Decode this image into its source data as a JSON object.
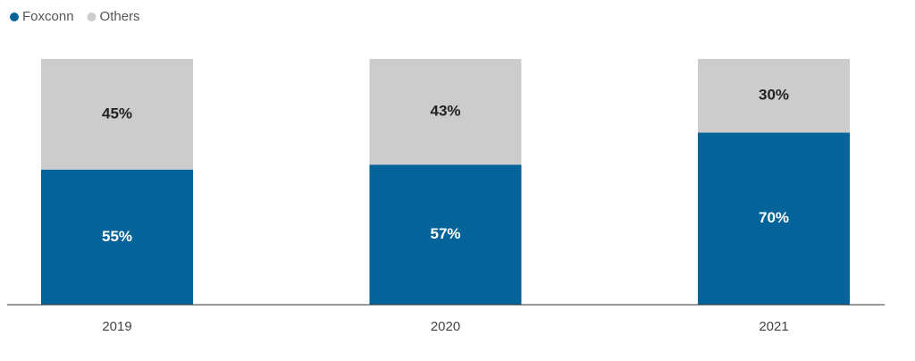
{
  "chart_data": {
    "type": "stacked-bar",
    "categories": [
      "2019",
      "2020",
      "2021"
    ],
    "series": [
      {
        "name": "Foxconn",
        "color": "#046399",
        "values": [
          55,
          57,
          70
        ],
        "value_labels": [
          "55%",
          "57%",
          "70%"
        ]
      },
      {
        "name": "Others",
        "color": "#cccccc",
        "values": [
          45,
          43,
          30
        ],
        "value_labels": [
          "45%",
          "43%",
          "30%"
        ]
      }
    ],
    "ylim": [
      0,
      100
    ]
  }
}
